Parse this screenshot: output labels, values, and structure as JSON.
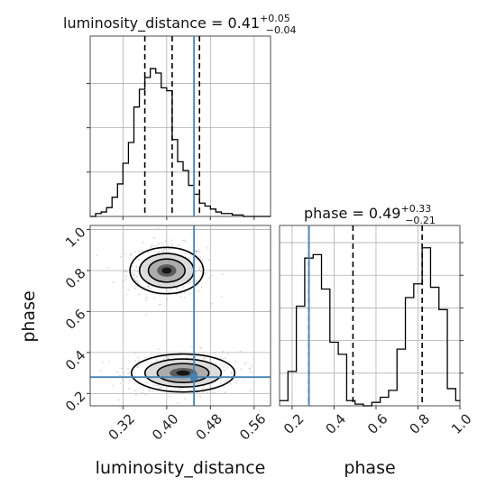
{
  "chart_data": {
    "type": "corner",
    "grid": true,
    "truth_color": "#4682b4",
    "parameters": [
      {
        "name": "luminosity_distance",
        "label": "luminosity_distance"
      },
      {
        "name": "phase",
        "label": "phase"
      }
    ],
    "truth": {
      "luminosity_distance": 0.45,
      "phase": 0.28
    },
    "luminosity_distance_hist": {
      "title_lhs": "luminosity_distance = 0.41",
      "title_sup": "+0.05",
      "title_sub": "−0.04",
      "bin_edges": [
        0.26,
        0.27,
        0.28,
        0.29,
        0.3,
        0.31,
        0.32,
        0.33,
        0.34,
        0.35,
        0.36,
        0.37,
        0.38,
        0.39,
        0.4,
        0.41,
        0.42,
        0.43,
        0.44,
        0.45,
        0.46,
        0.47,
        0.48,
        0.49,
        0.5,
        0.51,
        0.52,
        0.53,
        0.54,
        0.55,
        0.56,
        0.57,
        0.58,
        0.59
      ],
      "counts": [
        0,
        0.02,
        0.03,
        0.06,
        0.13,
        0.22,
        0.36,
        0.5,
        0.74,
        0.86,
        0.94,
        1.0,
        0.97,
        0.87,
        0.85,
        0.52,
        0.37,
        0.31,
        0.21,
        0.15,
        0.09,
        0.07,
        0.05,
        0.03,
        0.02,
        0.02,
        0.01,
        0.01,
        0.0,
        0.0,
        0.0,
        0.0,
        0.0
      ],
      "quantiles": [
        0.36,
        0.41,
        0.46
      ],
      "xlim": [
        0.26,
        0.59
      ],
      "ylim": [
        0,
        1.22
      ],
      "ytick_values": [
        0.3,
        0.6,
        0.9
      ]
    },
    "phase_hist": {
      "title_lhs": "phase = 0.49",
      "title_sup": "+0.33",
      "title_sub": "−0.21",
      "bin_edges": [
        0.14,
        0.18,
        0.22,
        0.26,
        0.3,
        0.34,
        0.38,
        0.42,
        0.46,
        0.5,
        0.54,
        0.58,
        0.62,
        0.66,
        0.7,
        0.74,
        0.78,
        0.82,
        0.86,
        0.9,
        0.94,
        0.98,
        1.0
      ],
      "counts": [
        0.03,
        0.2,
        0.58,
        0.86,
        0.88,
        0.68,
        0.37,
        0.3,
        0.03,
        0.01,
        0.0,
        0.02,
        0.05,
        0.09,
        0.33,
        0.63,
        0.71,
        0.92,
        0.69,
        0.56,
        0.1,
        0.03
      ],
      "quantiles": [
        0.28,
        0.49,
        0.82
      ],
      "xlim": [
        0.14,
        1.0
      ],
      "ylim": [
        0,
        1.05
      ]
    },
    "joint": {
      "xlim": [
        0.26,
        0.59
      ],
      "ylim": [
        0.14,
        1.02
      ],
      "modes": [
        {
          "x": 0.4,
          "y": 0.8,
          "sx": 0.032,
          "sy": 0.055,
          "weight": 0.5
        },
        {
          "x": 0.43,
          "y": 0.3,
          "sx": 0.045,
          "sy": 0.045,
          "weight": 0.5
        }
      ]
    },
    "x_ticks_distance": [
      0.32,
      0.4,
      0.48,
      0.56
    ],
    "x_tick_labels_distance": [
      "0.32",
      "0.40",
      "0.48",
      "0.56"
    ],
    "y_ticks_phase": [
      0.2,
      0.4,
      0.6,
      0.8,
      1.0
    ],
    "y_tick_labels_phase": [
      "0.2",
      "0.4",
      "0.6",
      "0.8",
      "1.0"
    ],
    "x_ticks_phase": [
      0.2,
      0.4,
      0.6,
      0.8,
      1.0
    ],
    "x_tick_labels_phase": [
      "0.2",
      "0.4",
      "0.6",
      "0.8",
      "1.0"
    ]
  }
}
